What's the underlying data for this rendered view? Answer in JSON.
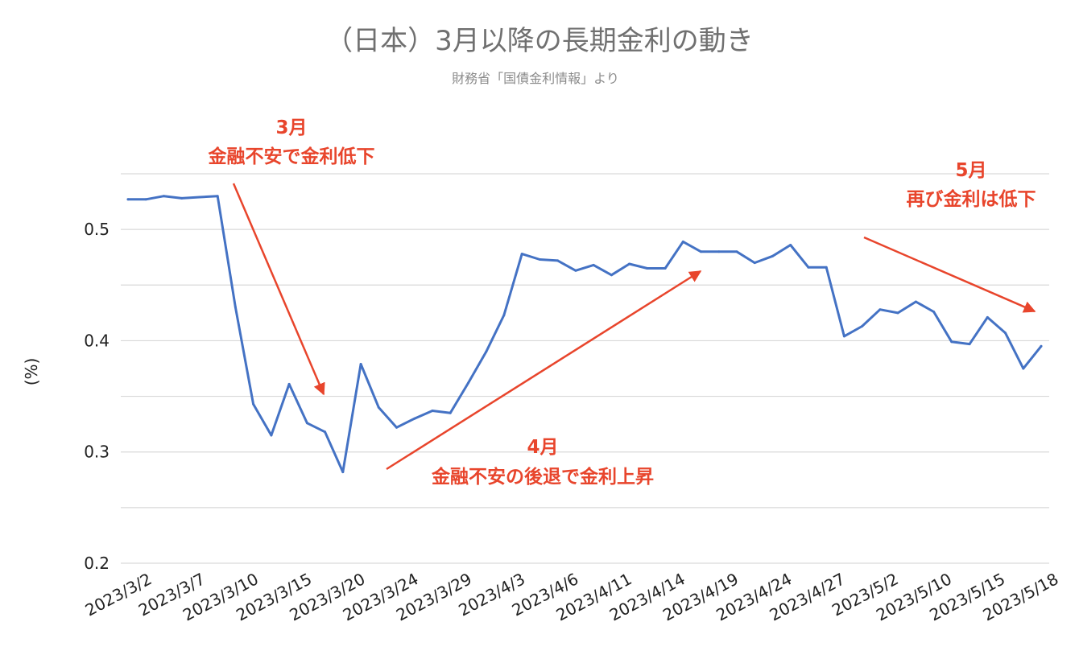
{
  "chart_data": {
    "type": "line",
    "title": "（日本）3月以降の長期金利の動き",
    "subtitle": "財務省「国債金利情報」より",
    "ylabel": "(%)",
    "xlabel": "",
    "ylim": [
      0.2,
      0.55
    ],
    "yticks": [
      "0.2",
      "0.3",
      "0.4",
      "0.5"
    ],
    "grid": true,
    "legend": "none",
    "x_tick_labels": [
      "2023/3/2",
      "2023/3/7",
      "2023/3/10",
      "2023/3/15",
      "2023/3/20",
      "2023/3/24",
      "2023/3/29",
      "2023/4/3",
      "2023/4/6",
      "2023/4/11",
      "2023/4/14",
      "2023/4/19",
      "2023/4/24",
      "2023/4/27",
      "2023/5/2",
      "2023/5/10",
      "2023/5/15",
      "2023/5/18"
    ],
    "series": [
      {
        "color": "#4472c4",
        "values": [
          0.527,
          0.527,
          0.53,
          0.528,
          0.529,
          0.53,
          0.43,
          0.343,
          0.315,
          0.361,
          0.326,
          0.318,
          0.282,
          0.379,
          0.34,
          0.322,
          0.33,
          0.337,
          0.335,
          0.362,
          0.39,
          0.423,
          0.478,
          0.473,
          0.472,
          0.463,
          0.468,
          0.459,
          0.469,
          0.465,
          0.465,
          0.489,
          0.48,
          0.48,
          0.48,
          0.47,
          0.476,
          0.486,
          0.466,
          0.466,
          0.404,
          0.413,
          0.428,
          0.425,
          0.435,
          0.426,
          0.399,
          0.397,
          0.421,
          0.407,
          0.375,
          0.395
        ]
      }
    ],
    "annotations": [
      {
        "lines": [
          "3月",
          "金融不安で金利低下"
        ],
        "color": "#e8452c"
      },
      {
        "lines": [
          "4月",
          "金融不安の後退で金利上昇"
        ],
        "color": "#e8452c"
      },
      {
        "lines": [
          "5月",
          "再び金利は低下"
        ],
        "color": "#e8452c"
      }
    ]
  }
}
